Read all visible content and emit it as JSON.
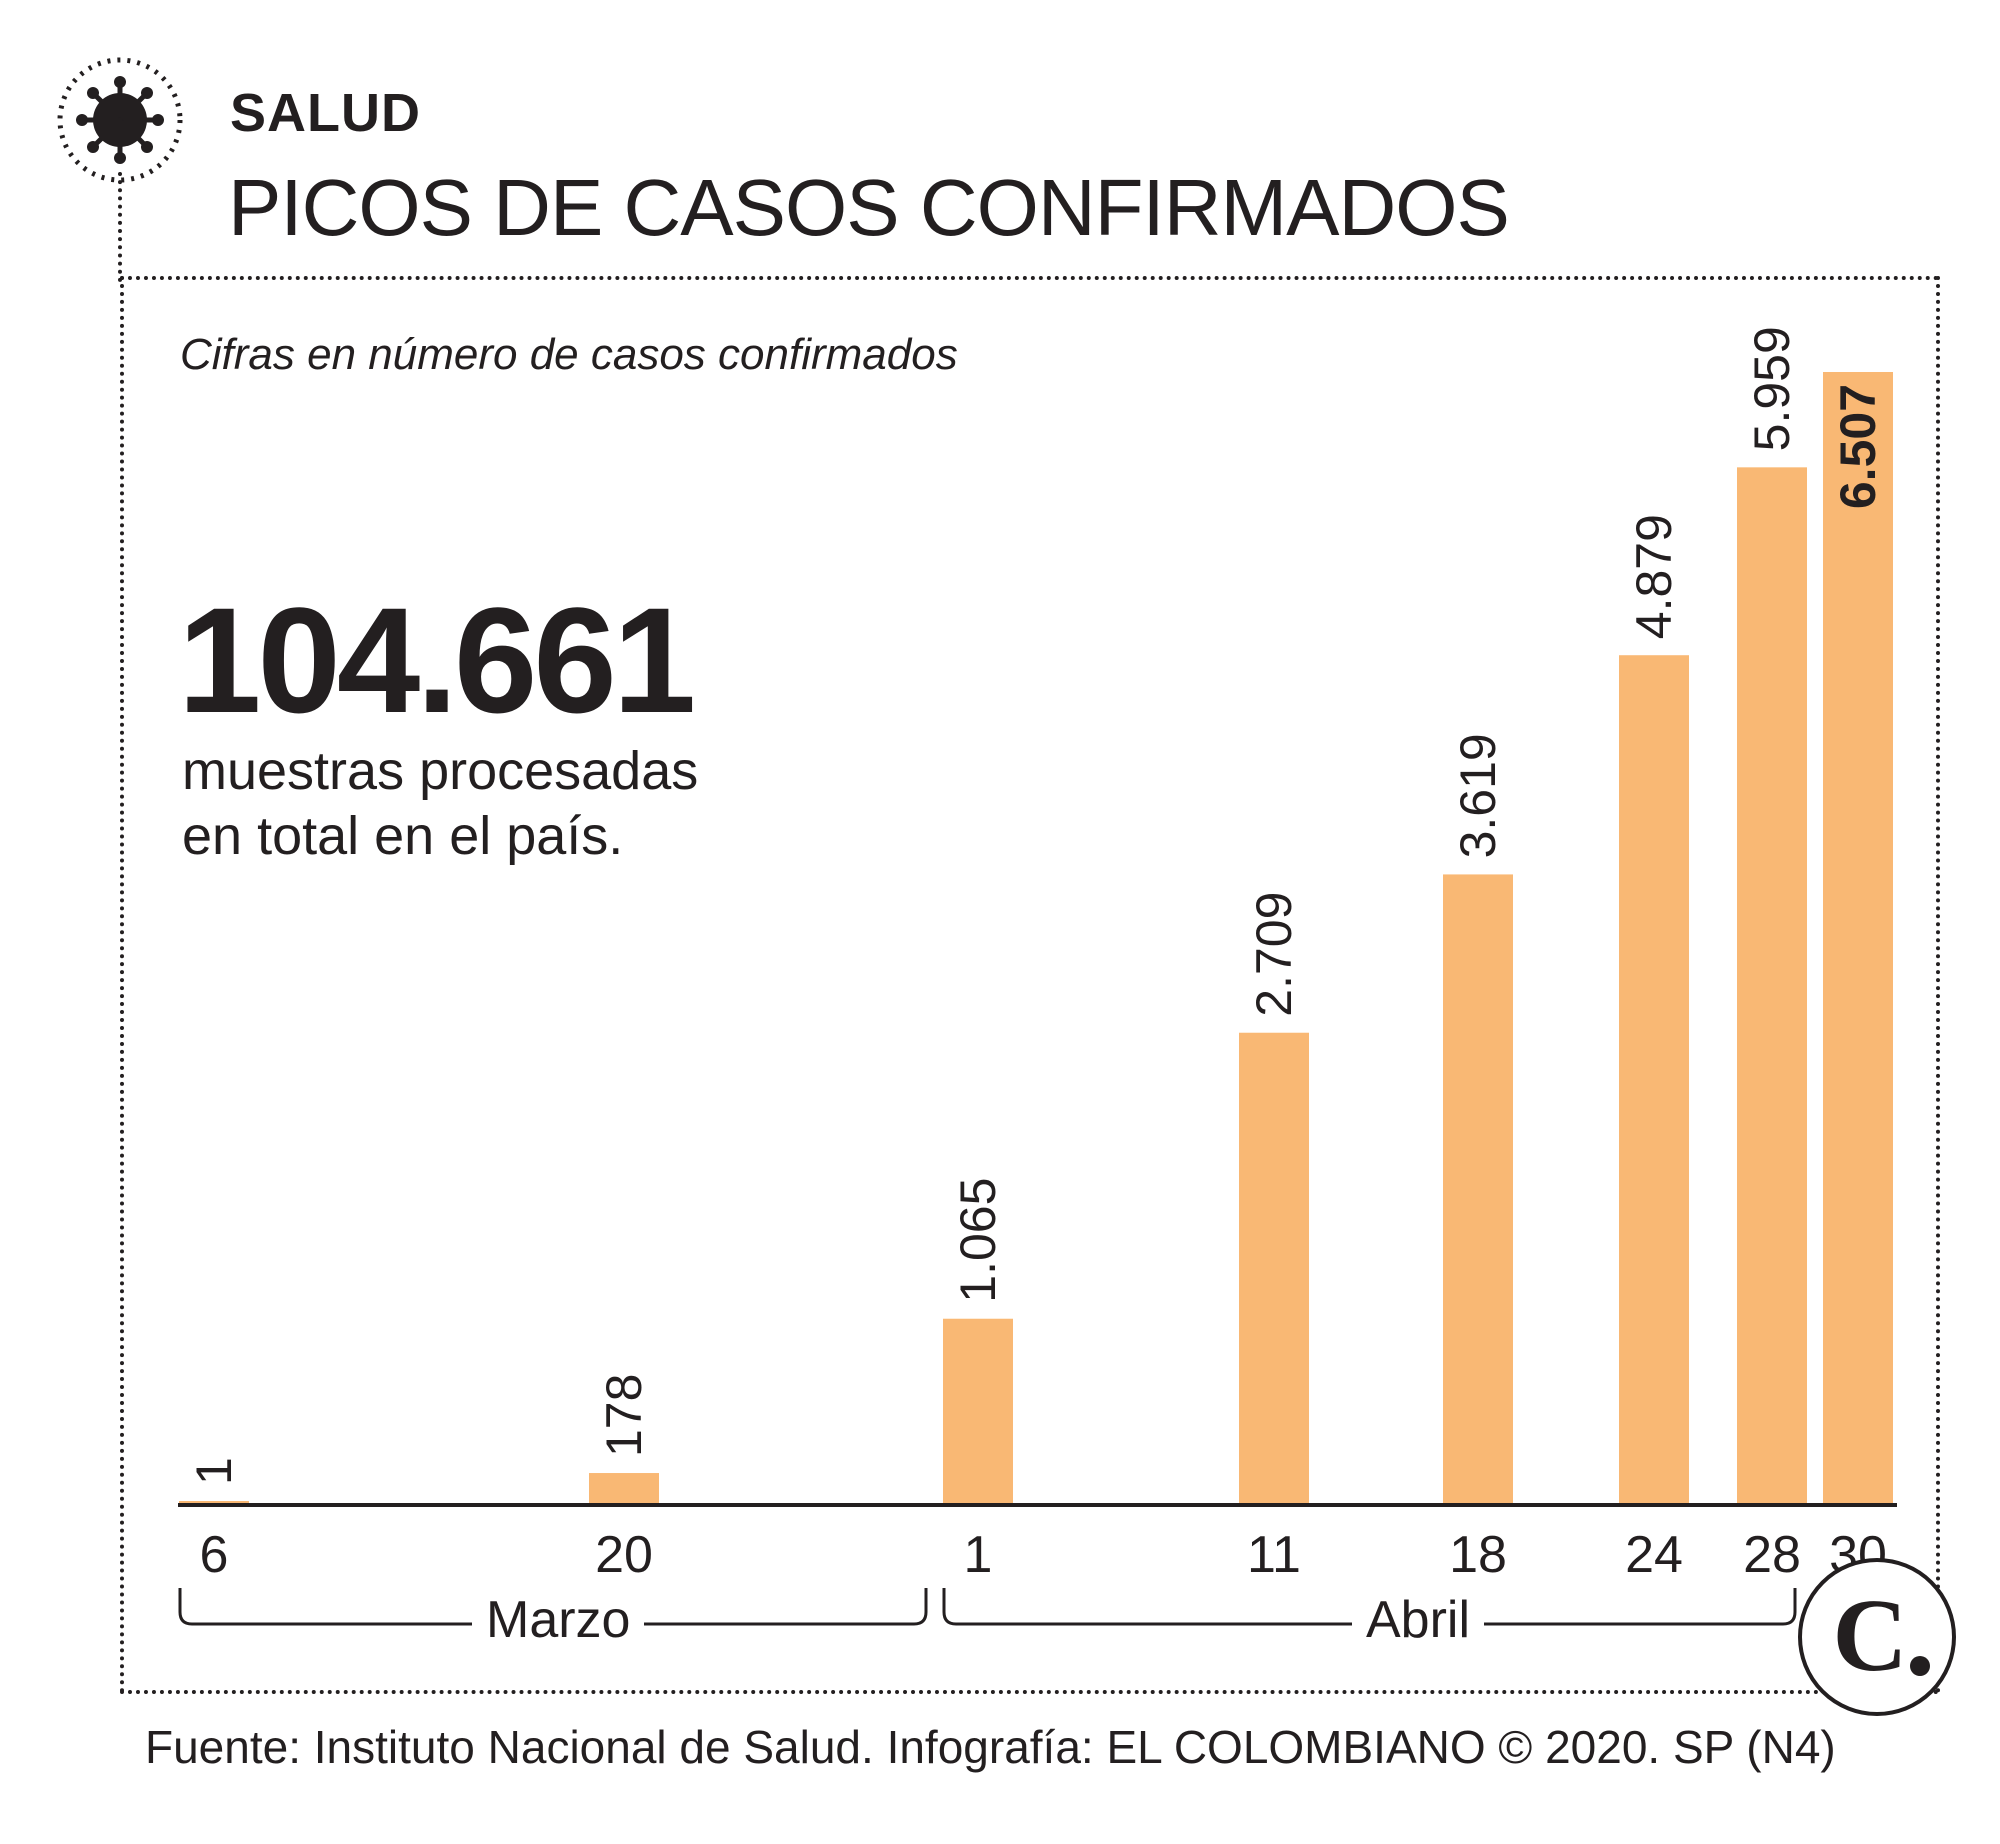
{
  "header": {
    "section": "SALUD",
    "title": "PICOS DE CASOS CONFIRMADOS"
  },
  "subtitle": "Cifras en número de casos confirmados",
  "highlight": {
    "value": "104.661",
    "line1": "muestras procesadas",
    "line2": "en total en el país."
  },
  "months": {
    "march": "Marzo",
    "april": "Abril"
  },
  "source": "Fuente: Instituto Nacional de Salud. Infografía: EL COLOMBIANO © 2020. SP (N4)",
  "colors": {
    "bar": "#f9b874",
    "text": "#231f20"
  },
  "icons": {
    "virus": "virus-icon",
    "publisher_logo": "el-colombiano-c-logo"
  },
  "chart_data": {
    "type": "bar",
    "categories": [
      "6",
      "20",
      "1",
      "11",
      "18",
      "24",
      "28",
      "30"
    ],
    "values": [
      1,
      178,
      1065,
      2709,
      3619,
      4879,
      5959,
      6507
    ],
    "value_labels": [
      "1",
      "178",
      "1.065",
      "2.709",
      "3.619",
      "4.879",
      "5.959",
      "6.507"
    ],
    "highlighted_index": 7,
    "title": "PICOS DE CASOS CONFIRMADOS",
    "xlabel": "",
    "ylabel": "",
    "ylim": [
      0,
      6507
    ],
    "grid": false,
    "legend": "none"
  }
}
